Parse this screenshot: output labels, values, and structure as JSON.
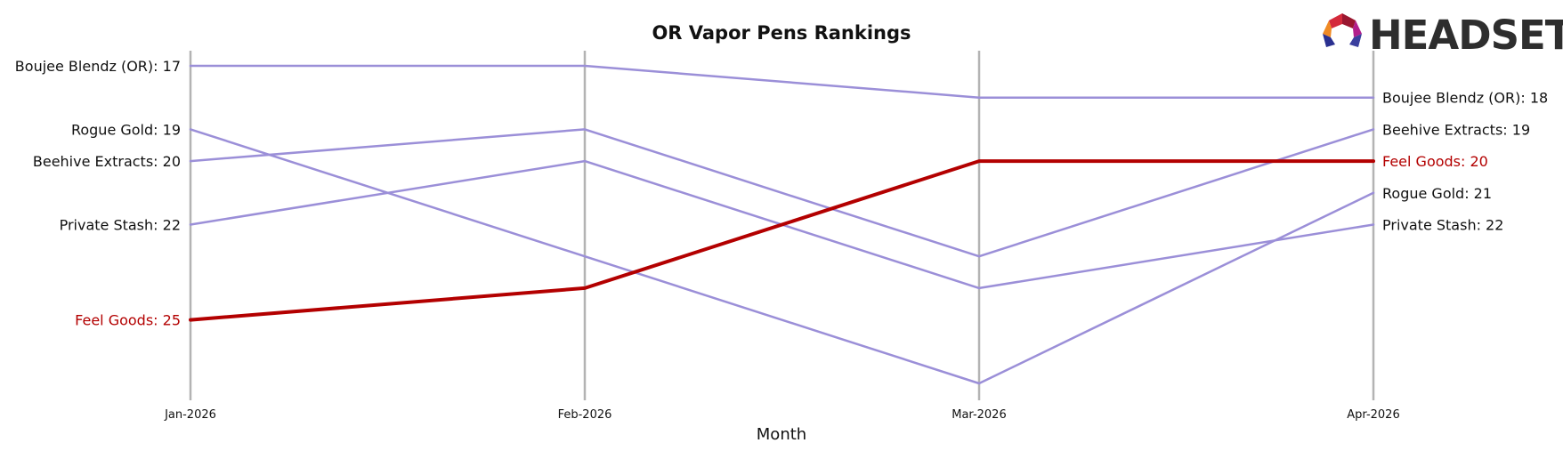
{
  "chart_data": {
    "type": "line",
    "title": "OR Vapor Pens Rankings",
    "xlabel": "Month",
    "ylabel": "",
    "x": [
      "Jan-2026",
      "Feb-2026",
      "Mar-2026",
      "Apr-2026"
    ],
    "y_inverted": true,
    "ylim": [
      17,
      27.3
    ],
    "grid": false,
    "series": [
      {
        "name": "Boujee Blendz (OR)",
        "values": [
          17,
          17,
          18,
          18
        ],
        "color": "#9b8fd8",
        "highlight": false
      },
      {
        "name": "Rogue Gold",
        "values": [
          19,
          23,
          27,
          21
        ],
        "color": "#9b8fd8",
        "highlight": false
      },
      {
        "name": "Beehive Extracts",
        "values": [
          20,
          19,
          23,
          19
        ],
        "color": "#9b8fd8",
        "highlight": false
      },
      {
        "name": "Private Stash",
        "values": [
          22,
          20,
          24,
          22
        ],
        "color": "#9b8fd8",
        "highlight": false
      },
      {
        "name": "Feel Goods",
        "values": [
          25,
          24,
          20,
          20
        ],
        "color": "#b30000",
        "highlight": true
      }
    ],
    "start_labels": [
      {
        "series": "Boujee Blendz (OR)",
        "text": "Boujee Blendz (OR): 17",
        "value": 17
      },
      {
        "series": "Rogue Gold",
        "text": "Rogue Gold: 19",
        "value": 19
      },
      {
        "series": "Beehive Extracts",
        "text": "Beehive Extracts: 20",
        "value": 20
      },
      {
        "series": "Private Stash",
        "text": "Private Stash: 22",
        "value": 22
      },
      {
        "series": "Feel Goods",
        "text": "Feel Goods: 25",
        "value": 25
      }
    ],
    "end_labels": [
      {
        "series": "Boujee Blendz (OR)",
        "text": "Boujee Blendz (OR): 18",
        "value": 18
      },
      {
        "series": "Beehive Extracts",
        "text": "Beehive Extracts: 19",
        "value": 19
      },
      {
        "series": "Feel Goods",
        "text": "Feel Goods: 20",
        "value": 20
      },
      {
        "series": "Rogue Gold",
        "text": "Rogue Gold: 21",
        "value": 21
      },
      {
        "series": "Private Stash",
        "text": "Private Stash: 22",
        "value": 22
      }
    ]
  },
  "brand": {
    "logo_text": "HEADSET",
    "logo_icon": "headset-logo-icon"
  },
  "colors": {
    "highlight": "#b30000",
    "series": "#9b8fd8",
    "vertical_lines": "#b3b3b3",
    "text": "#111111"
  }
}
